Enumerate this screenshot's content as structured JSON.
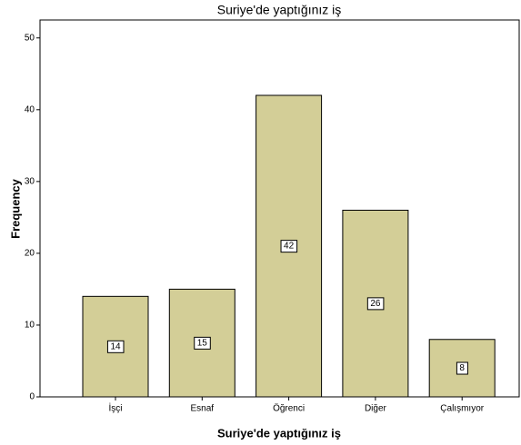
{
  "chart_data": {
    "type": "bar",
    "title": "Suriye'de yaptığınız iş",
    "x_label": "Suriye'de yaptığınız iş",
    "y_label": "Frequency",
    "categories": [
      "İşçi",
      "Esnaf",
      "Öğrenci",
      "Diğer",
      "Çalışmıyor"
    ],
    "values": [
      14,
      15,
      42,
      26,
      8
    ],
    "color": "#d3ce97",
    "ylim": [
      0,
      52.5
    ],
    "yticks": [
      0,
      10,
      20,
      30,
      40,
      50
    ],
    "grid": false
  }
}
